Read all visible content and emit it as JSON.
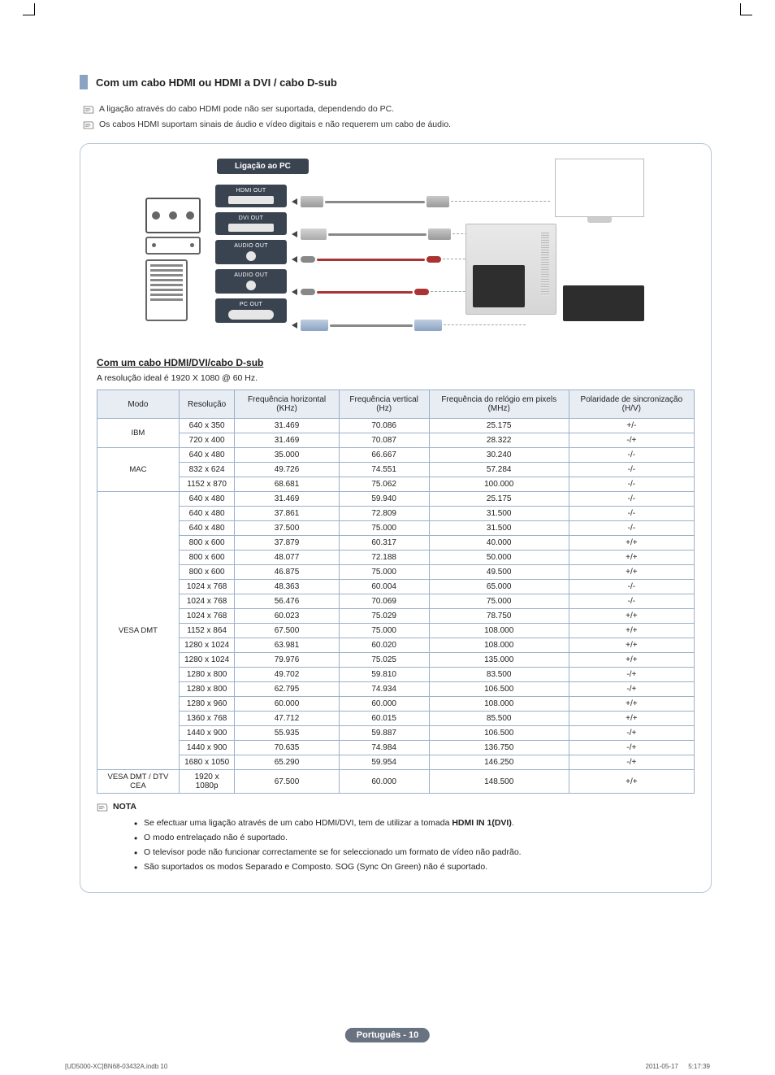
{
  "section": {
    "title": "Com um cabo HDMI ou HDMI a DVI / cabo D-sub"
  },
  "intro_notes": [
    "A ligação através do cabo HDMI pode não ser suportada, dependendo do PC.",
    "Os cabos HDMI suportam sinais de áudio e vídeo digitais e não requerem um cabo de áudio."
  ],
  "diagram": {
    "pc_label": "Ligação ao PC",
    "ports": [
      "HDMI OUT",
      "DVI OUT",
      "AUDIO OUT",
      "AUDIO OUT",
      "PC OUT"
    ]
  },
  "sub_section": {
    "heading": "Com um cabo HDMI/DVI/cabo D-sub",
    "text": "A resolução ideal é 1920 X 1080 @ 60 Hz."
  },
  "table": {
    "headers": [
      "Modo",
      "Resolução",
      "Frequência horizontal (KHz)",
      "Frequência vertical (Hz)",
      "Frequência do relógio em pixels (MHz)",
      "Polaridade de sincronização (H/V)"
    ],
    "groups": [
      {
        "mode": "IBM",
        "rows": [
          [
            "640 x 350",
            "31.469",
            "70.086",
            "25.175",
            "+/-"
          ],
          [
            "720 x 400",
            "31.469",
            "70.087",
            "28.322",
            "-/+"
          ]
        ]
      },
      {
        "mode": "MAC",
        "rows": [
          [
            "640 x 480",
            "35.000",
            "66.667",
            "30.240",
            "-/-"
          ],
          [
            "832 x 624",
            "49.726",
            "74.551",
            "57.284",
            "-/-"
          ],
          [
            "1152 x 870",
            "68.681",
            "75.062",
            "100.000",
            "-/-"
          ]
        ]
      },
      {
        "mode": "VESA DMT",
        "rows": [
          [
            "640 x 480",
            "31.469",
            "59.940",
            "25.175",
            "-/-"
          ],
          [
            "640 x 480",
            "37.861",
            "72.809",
            "31.500",
            "-/-"
          ],
          [
            "640 x 480",
            "37.500",
            "75.000",
            "31.500",
            "-/-"
          ],
          [
            "800 x 600",
            "37.879",
            "60.317",
            "40.000",
            "+/+"
          ],
          [
            "800 x 600",
            "48.077",
            "72.188",
            "50.000",
            "+/+"
          ],
          [
            "800 x 600",
            "46.875",
            "75.000",
            "49.500",
            "+/+"
          ],
          [
            "1024 x 768",
            "48.363",
            "60.004",
            "65.000",
            "-/-"
          ],
          [
            "1024 x 768",
            "56.476",
            "70.069",
            "75.000",
            "-/-"
          ],
          [
            "1024 x 768",
            "60.023",
            "75.029",
            "78.750",
            "+/+"
          ],
          [
            "1152 x 864",
            "67.500",
            "75.000",
            "108.000",
            "+/+"
          ],
          [
            "1280 x 1024",
            "63.981",
            "60.020",
            "108.000",
            "+/+"
          ],
          [
            "1280 x 1024",
            "79.976",
            "75.025",
            "135.000",
            "+/+"
          ],
          [
            "1280 x 800",
            "49.702",
            "59.810",
            "83.500",
            "-/+"
          ],
          [
            "1280 x 800",
            "62.795",
            "74.934",
            "106.500",
            "-/+"
          ],
          [
            "1280 x 960",
            "60.000",
            "60.000",
            "108.000",
            "+/+"
          ],
          [
            "1360 x 768",
            "47.712",
            "60.015",
            "85.500",
            "+/+"
          ],
          [
            "1440 x 900",
            "55.935",
            "59.887",
            "106.500",
            "-/+"
          ],
          [
            "1440 x 900",
            "70.635",
            "74.984",
            "136.750",
            "-/+"
          ],
          [
            "1680 x 1050",
            "65.290",
            "59.954",
            "146.250",
            "-/+"
          ]
        ]
      },
      {
        "mode": "VESA DMT / DTV CEA",
        "rows": [
          [
            "1920 x 1080p",
            "67.500",
            "60.000",
            "148.500",
            "+/+"
          ]
        ]
      }
    ]
  },
  "nota": {
    "label": "NOTA",
    "items": [
      {
        "pre": "Se efectuar uma ligação através de um cabo HDMI/DVI, tem de utilizar a tomada ",
        "bold": "HDMI IN 1(DVI)",
        "post": "."
      },
      {
        "pre": "O modo entrelaçado não é suportado.",
        "bold": "",
        "post": ""
      },
      {
        "pre": "O televisor pode não funcionar correctamente se for seleccionado um formato de vídeo não padrão.",
        "bold": "",
        "post": ""
      },
      {
        "pre": "São suportados os modos Separado e Composto. SOG (Sync On Green) não é suportado.",
        "bold": "",
        "post": ""
      }
    ]
  },
  "footer": {
    "lang": "Português - 10",
    "left": "[UD5000-XC]BN68-03432A.indb   10",
    "right": "2011-05-17      5:17:39"
  },
  "style": {
    "accent_border": "#9cb0c8",
    "th_bg": "#e8edf4",
    "badge_bg": "#687280",
    "tab_bg": "#8aa3c2",
    "port_bg": "#3a4350"
  }
}
